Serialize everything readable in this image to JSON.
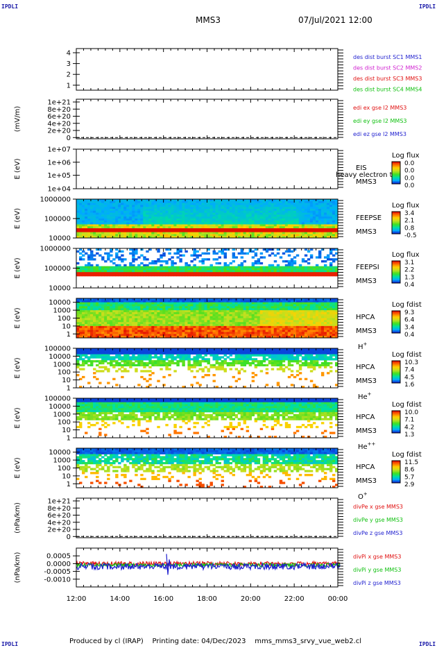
{
  "header": {
    "corner_tl": "IPDLI",
    "corner_tr": "IPDLI",
    "corner_bl": "IPDLI",
    "corner_br": "IPDLI",
    "title": "MMS3",
    "date": "07/Jul/2021 12:00"
  },
  "footer": {
    "text": "Produced by cl (IRAP)    Printing date: 04/Dec/2023    mms_mms3_srvy_vue_web2.cl"
  },
  "colors": {
    "blue": "#1f1fcf",
    "magenta": "#d020d0",
    "red": "#e01010",
    "green": "#10c010",
    "spectrogram_scale": [
      "#1010c8",
      "#00aaff",
      "#00e0a0",
      "#40e020",
      "#c0e020",
      "#ffd000",
      "#ff7000",
      "#e00000"
    ]
  },
  "chart_data": [
    {
      "type": "line",
      "id": "burst",
      "ylabel": "",
      "yticks": [
        "4",
        "3",
        "2",
        "1"
      ],
      "ylim": [
        0.5,
        4.5
      ],
      "x": [
        "12:00",
        "14:00",
        "16:00",
        "18:00",
        "20:00",
        "22:00",
        "00:00"
      ],
      "series": [],
      "legend": [
        {
          "text": "des dist burst SC1 MMS1",
          "color": "#1f1fcf"
        },
        {
          "text": "des dist burst SC2 MMS2",
          "color": "#d020d0"
        },
        {
          "text": "des dist burst SC3 MMS3",
          "color": "#e01010"
        },
        {
          "text": "des dist burst SC4 MMS4",
          "color": "#10c010"
        }
      ]
    },
    {
      "type": "line",
      "id": "edi",
      "ylabel": "(mV/m)",
      "yticks": [
        "1e+21",
        "8e+20",
        "6e+20",
        "4e+20",
        "2e+20",
        "0"
      ],
      "ylim": [
        0,
        1e+21
      ],
      "x": [
        "12:00",
        "14:00",
        "16:00",
        "18:00",
        "20:00",
        "22:00",
        "00:00"
      ],
      "series": [],
      "legend": [
        {
          "text": "edi ex gse l2 MMS3",
          "color": "#e01010"
        },
        {
          "text": "edi ey gse l2 MMS3",
          "color": "#10c010"
        },
        {
          "text": "edi ez gse l2 MMS3",
          "color": "#1f1fcf"
        }
      ]
    },
    {
      "type": "heatmap",
      "id": "eis",
      "ylabel": "E (eV)",
      "yscale": "log",
      "yticks": [
        "1e+07",
        "1e+06",
        "1e+05",
        "1e+04"
      ],
      "ylim": [
        10000,
        10000000
      ],
      "x": [
        "12:00",
        "14:00",
        "16:00",
        "18:00",
        "20:00",
        "22:00",
        "00:00"
      ],
      "labels": [
        "EIS",
        "MMS3"
      ],
      "overlay_text": "heavy electron to",
      "colorbar": {
        "title": "Log flux",
        "ticks": [
          "0.0",
          "0.0",
          "0.0",
          "0.0"
        ]
      }
    },
    {
      "type": "heatmap",
      "id": "feepse",
      "ylabel": "E (eV)",
      "yscale": "log",
      "yticks": [
        "1000000",
        "100000",
        "10000"
      ],
      "ylim": [
        10000,
        1000000
      ],
      "x": [
        "12:00",
        "14:00",
        "16:00",
        "18:00",
        "20:00",
        "22:00",
        "00:00"
      ],
      "labels": [
        "FEEPSE",
        "MMS3"
      ],
      "colorbar": {
        "title": "Log flux",
        "ticks": [
          "3.4",
          "2.1",
          "0.8",
          "-0.5"
        ]
      }
    },
    {
      "type": "heatmap",
      "id": "feepsi",
      "ylabel": "E (eV)",
      "yscale": "log",
      "yticks": [
        "1000000",
        "100000",
        "10000"
      ],
      "ylim": [
        10000,
        1000000
      ],
      "x": [
        "12:00",
        "14:00",
        "16:00",
        "18:00",
        "20:00",
        "22:00",
        "00:00"
      ],
      "labels": [
        "FEEPSI",
        "MMS3"
      ],
      "colorbar": {
        "title": "Log flux",
        "ticks": [
          "3.1",
          "2.2",
          "1.3",
          "0.4"
        ]
      }
    },
    {
      "type": "heatmap",
      "id": "hpca_h",
      "ylabel": "E (eV)",
      "yscale": "log",
      "yticks": [
        "10000",
        "1000",
        "100",
        "10",
        "1"
      ],
      "ylim": [
        1,
        30000
      ],
      "x": [
        "12:00",
        "14:00",
        "16:00",
        "18:00",
        "20:00",
        "22:00",
        "00:00"
      ],
      "labels": [
        "HPCA",
        "MMS3"
      ],
      "species": "H",
      "species_sup": "+",
      "colorbar": {
        "title": "Log fdist",
        "ticks": [
          "9.3",
          "6.4",
          "3.4",
          "0.4"
        ]
      }
    },
    {
      "type": "heatmap",
      "id": "hpca_he",
      "ylabel": "E (eV)",
      "yscale": "log",
      "yticks": [
        "100000",
        "10000",
        "1000",
        "100",
        "10",
        "1"
      ],
      "ylim": [
        1,
        100000
      ],
      "x": [
        "12:00",
        "14:00",
        "16:00",
        "18:00",
        "20:00",
        "22:00",
        "00:00"
      ],
      "labels": [
        "HPCA",
        "MMS3"
      ],
      "species": "He",
      "species_sup": "+",
      "colorbar": {
        "title": "Log fdist",
        "ticks": [
          "10.3",
          "7.4",
          "4.5",
          "1.6"
        ]
      }
    },
    {
      "type": "heatmap",
      "id": "hpca_hepp",
      "ylabel": "E (eV)",
      "yscale": "log",
      "yticks": [
        "100000",
        "10000",
        "1000",
        "100",
        "10",
        "1"
      ],
      "ylim": [
        1,
        100000
      ],
      "x": [
        "12:00",
        "14:00",
        "16:00",
        "18:00",
        "20:00",
        "22:00",
        "00:00"
      ],
      "labels": [
        "HPCA",
        "MMS3"
      ],
      "species": "He",
      "species_sup": "++",
      "colorbar": {
        "title": "Log fdist",
        "ticks": [
          "10.0",
          "7.1",
          "4.2",
          "1.3"
        ]
      }
    },
    {
      "type": "heatmap",
      "id": "hpca_o",
      "ylabel": "E (eV)",
      "yscale": "log",
      "yticks": [
        "10000",
        "1000",
        "100",
        "10",
        "1"
      ],
      "ylim": [
        1,
        30000
      ],
      "x": [
        "12:00",
        "14:00",
        "16:00",
        "18:00",
        "20:00",
        "22:00",
        "00:00"
      ],
      "labels": [
        "HPCA",
        "MMS3"
      ],
      "species": "O",
      "species_sup": "+",
      "colorbar": {
        "title": "Log fdist",
        "ticks": [
          "11.5",
          "8.6",
          "5.7",
          "2.9"
        ]
      }
    },
    {
      "type": "line",
      "id": "divpe",
      "ylabel": "(nPa/km)",
      "yticks": [
        "1e+21",
        "8e+20",
        "6e+20",
        "4e+20",
        "2e+20",
        "0"
      ],
      "ylim": [
        0,
        1e+21
      ],
      "x": [
        "12:00",
        "14:00",
        "16:00",
        "18:00",
        "20:00",
        "22:00",
        "00:00"
      ],
      "series": [],
      "legend": [
        {
          "text": "divPe x gse MMS3",
          "color": "#e01010"
        },
        {
          "text": "divPe y gse MMS3",
          "color": "#10c010"
        },
        {
          "text": "divPe z gse MMS3",
          "color": "#1f1fcf"
        }
      ]
    },
    {
      "type": "line",
      "id": "divpi",
      "ylabel": "(nPa/km)",
      "yticks": [
        "0.0005",
        "0.0000",
        "-0.0005",
        "-0.0010"
      ],
      "ylim": [
        -0.0012,
        0.0008
      ],
      "x": [
        "12:00",
        "14:00",
        "16:00",
        "18:00",
        "20:00",
        "22:00",
        "00:00"
      ],
      "legend": [
        {
          "text": "divPi x gse MMS3",
          "color": "#e01010"
        },
        {
          "text": "divPi y gse MMS3",
          "color": "#10c010"
        },
        {
          "text": "divPi z gse MMS3",
          "color": "#1f1fcf"
        }
      ]
    }
  ]
}
